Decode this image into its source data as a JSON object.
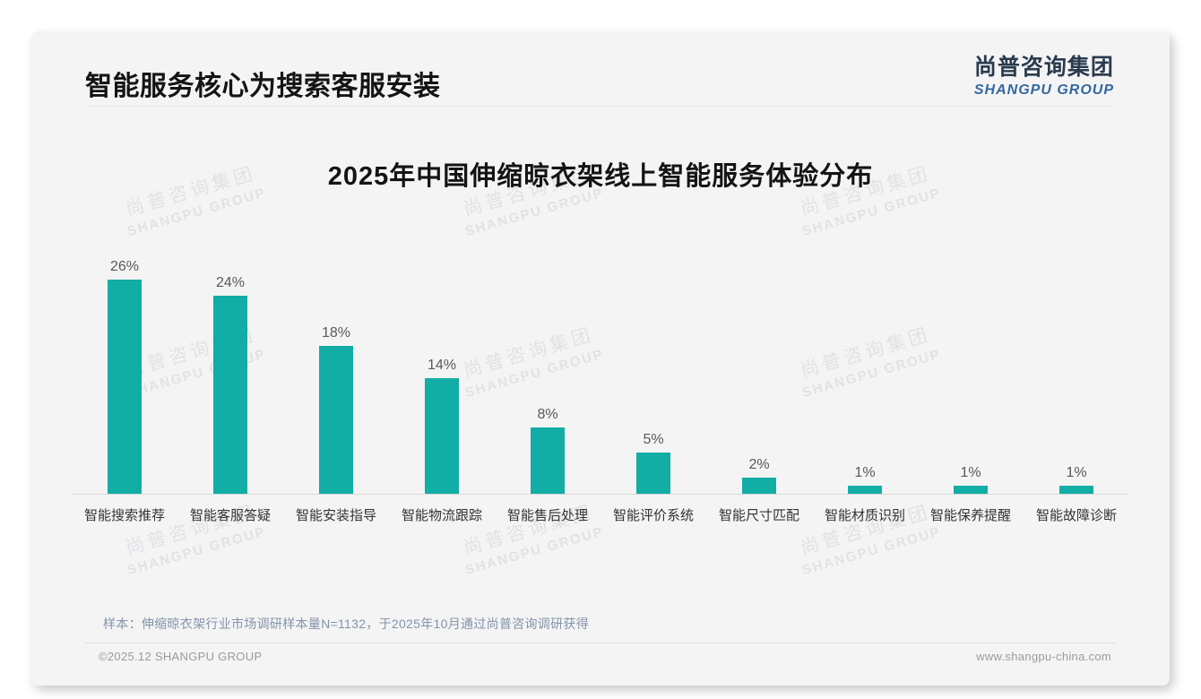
{
  "page": {
    "title": "智能服务核心为搜索客服安装",
    "logo": {
      "cn": "尚普咨询集团",
      "en": "SHANGPU GROUP"
    },
    "watermark": {
      "cn": "尚普咨询集团",
      "en": "SHANGPU GROUP"
    },
    "footer": {
      "note": "样本：伸缩晾衣架行业市场调研样本量N=1132，于2025年10月通过尚普咨询调研获得",
      "copyright": "©2025.12 SHANGPU GROUP",
      "website": "www.shangpu-china.com"
    }
  },
  "chart_data": {
    "type": "bar",
    "title": "2025年中国伸缩晾衣架线上智能服务体验分布",
    "categories": [
      "智能搜索推荐",
      "智能客服答疑",
      "智能安装指导",
      "智能物流跟踪",
      "智能售后处理",
      "智能评价系统",
      "智能尺寸匹配",
      "智能材质识别",
      "智能保养提醒",
      "智能故障诊断"
    ],
    "values": [
      26,
      24,
      18,
      14,
      8,
      5,
      2,
      1,
      1,
      1
    ],
    "value_labels": [
      "26%",
      "24%",
      "18%",
      "14%",
      "8%",
      "5%",
      "2%",
      "1%",
      "1%",
      "1%"
    ],
    "unit": "%",
    "xlabel": "",
    "ylabel": "",
    "ylim": [
      0,
      26
    ],
    "grid": false,
    "legend": false,
    "bar_color": "#12ada5",
    "label_color": "#595959",
    "axis_line_color": "#d9d9d9"
  }
}
